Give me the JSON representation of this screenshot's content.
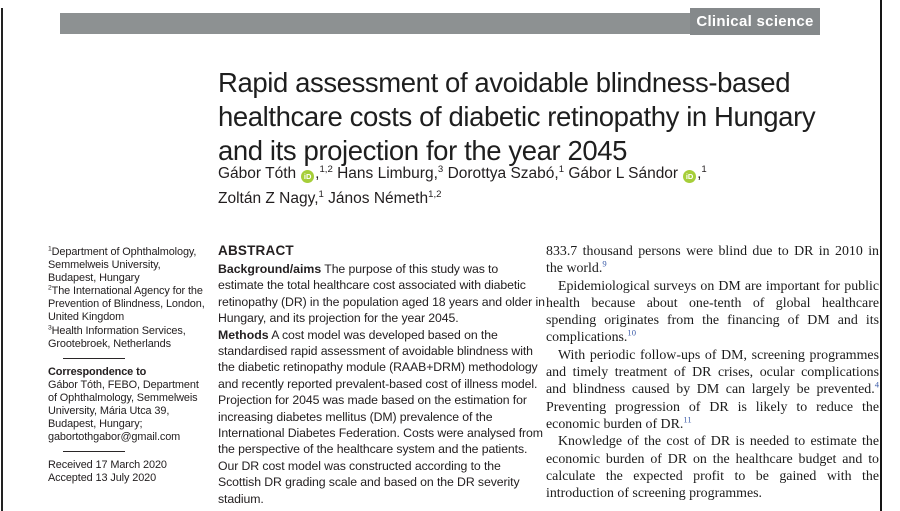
{
  "theme": {
    "text": "#231f20",
    "bar_gray": "#8d9192",
    "badge_gray": "#85898b",
    "orcid_green": "#a6ce39",
    "ref_blue": "#3d5da9"
  },
  "masthead": {
    "section_label": "Clinical science"
  },
  "article": {
    "title_lines": [
      "Rapid assessment of avoidable blindness-based",
      "healthcare costs of diabetic retinopathy in Hungary",
      "and its projection for the year 2045"
    ],
    "author_lines": [
      [
        {
          "name": "Gábor Tóth",
          "orcid": true,
          "sep": ",",
          "sup": "1,2"
        },
        {
          "name": "Hans Limburg",
          "orcid": false,
          "sep": ",",
          "sup": "3"
        },
        {
          "name": "Dorottya Szabó",
          "orcid": false,
          "sep": ",",
          "sup": "1"
        },
        {
          "name": "Gábor L Sándor",
          "orcid": true,
          "sep": ",",
          "sup": "1"
        }
      ],
      [
        {
          "name": "Zoltán Z Nagy",
          "orcid": false,
          "sep": ",",
          "sup": "1"
        },
        {
          "name": "János Németh",
          "orcid": false,
          "sep": "",
          "sup": "1,2"
        }
      ]
    ]
  },
  "sidebar": {
    "affiliations": [
      {
        "sup": "1",
        "text": "Department of Ophthalmology, Semmelweis University, Budapest, Hungary"
      },
      {
        "sup": "2",
        "text": "The International Agency for the Prevention of Blindness, London, United Kingdom"
      },
      {
        "sup": "3",
        "text": "Health Information Services, Grootebroek, Netherlands"
      }
    ],
    "correspondence": {
      "label": "Correspondence to",
      "text": "Gábor Tóth, FEBO, Department of Ophthalmology, Semmelweis University, Mária Utca 39, Budapest, Hungary; gabortothgabor@gmail.com"
    },
    "history": [
      "Received 17 March 2020",
      "Accepted 13 July 2020"
    ]
  },
  "abstract": {
    "heading": "ABSTRACT",
    "sections": [
      {
        "label": "Background/aims",
        "text": "The purpose of this study was to estimate the total healthcare cost associated with diabetic retinopathy (DR) in the population aged 18 years and older in Hungary, and its projection for the year 2045."
      },
      {
        "label": "Methods",
        "text": "A cost model was developed based on the standardised rapid assessment of avoidable blindness with the diabetic retinopathy module (RAAB+DRM) methodology and recently reported prevalent-based cost of illness model. Projection for 2045 was made based on the estimation for increasing diabetes mellitus (DM) prevalence of the International Diabetes Federation. Costs were analysed from the perspective of the healthcare system and the patients. Our DR cost model was constructed according to the Scottish DR grading scale and based on the DR severity stadium."
      }
    ]
  },
  "body_column": {
    "paragraphs": [
      {
        "indent": false,
        "segments": [
          {
            "t": "833.7 thousand persons were blind due to DR in 2010 in the world."
          },
          {
            "ref": "9"
          }
        ]
      },
      {
        "indent": true,
        "segments": [
          {
            "t": "Epidemiological surveys on DM are important for public health because about one-tenth of global healthcare spending originates from the financing of DM and its complications."
          },
          {
            "ref": "10"
          }
        ]
      },
      {
        "indent": true,
        "segments": [
          {
            "t": "With periodic follow-ups of DM, screening programmes and timely treatment of DR crises, ocular complications and blindness caused by DM can largely be prevented."
          },
          {
            "ref": "4"
          },
          {
            "t": " Preventing progression of DR is likely to reduce the economic burden of DR."
          },
          {
            "ref": "11"
          }
        ]
      },
      {
        "indent": true,
        "segments": [
          {
            "t": "Knowledge of the cost of DR is needed to estimate the economic burden of DR on the healthcare budget and to calculate the expected profit to be gained with the introduction of screening programmes."
          }
        ]
      }
    ]
  }
}
